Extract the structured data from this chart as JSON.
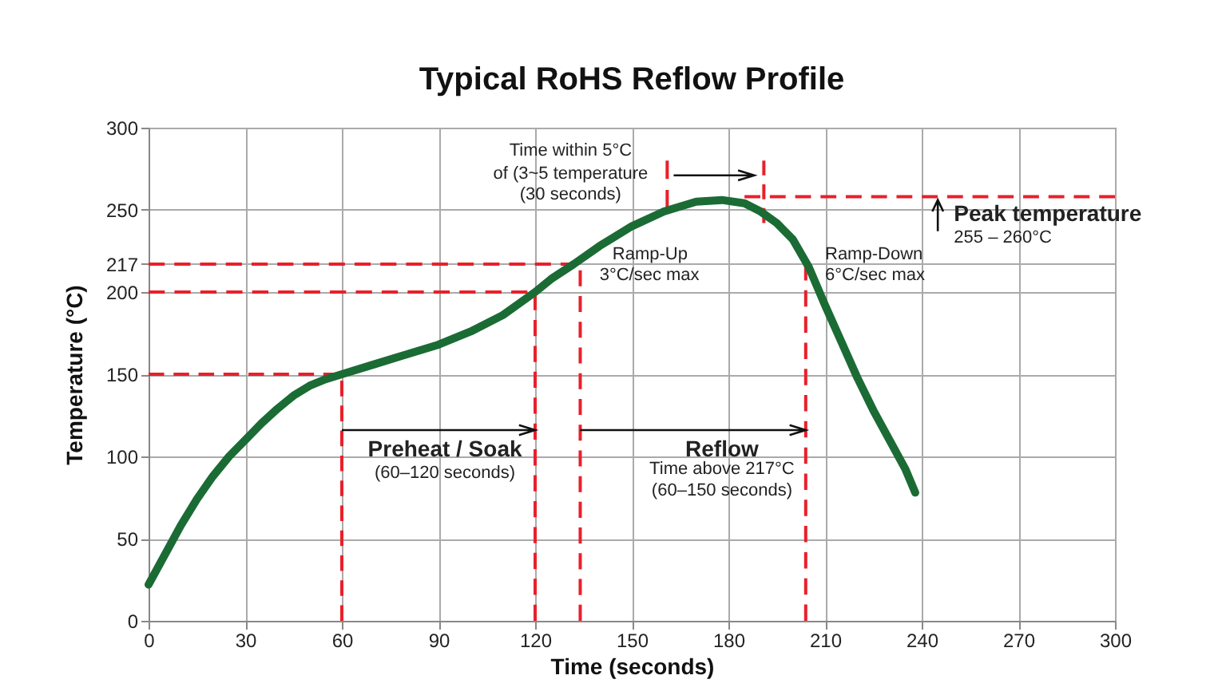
{
  "chart_data": {
    "type": "line",
    "title": "Typical RoHS Reflow Profile",
    "xlabel": "Time (seconds)",
    "ylabel": "Temperature (°C)",
    "xlim": [
      0,
      300
    ],
    "xticks": [
      0,
      30,
      60,
      90,
      120,
      150,
      180,
      210,
      240,
      270,
      300
    ],
    "ylim": [
      0,
      300
    ],
    "yticks": [
      0,
      50,
      100,
      150,
      200,
      217,
      250,
      300
    ],
    "grid": true,
    "series": [
      {
        "color": "#1b6b35",
        "x": [
          0,
          5,
          10,
          15,
          20,
          25,
          30,
          35,
          40,
          45,
          50,
          55,
          60,
          70,
          80,
          90,
          100,
          110,
          120,
          125,
          132,
          140,
          150,
          160,
          170,
          178,
          185,
          190,
          195,
          200,
          205,
          210,
          215,
          220,
          225,
          230,
          235,
          238
        ],
        "values": [
          22,
          40,
          58,
          74,
          88,
          100,
          110,
          120,
          129,
          137,
          143,
          147,
          150,
          156,
          162,
          168,
          176,
          186,
          200,
          208,
          217,
          228,
          240,
          249,
          255,
          256,
          254,
          249,
          242,
          232,
          215,
          192,
          170,
          148,
          128,
          110,
          92,
          78
        ]
      },
      {
        "type": "line",
        "line_style": "dashed",
        "color": "#e8202a",
        "x": [
          0,
          60,
          60
        ],
        "values": [
          150,
          150,
          0
        ]
      },
      {
        "type": "line",
        "line_style": "dashed",
        "color": "#e8202a",
        "x": [
          0,
          120,
          120
        ],
        "values": [
          200,
          200,
          0
        ]
      },
      {
        "type": "line",
        "line_style": "dashed",
        "color": "#e8202a",
        "x": [
          0,
          134,
          134
        ],
        "values": [
          217,
          217,
          0
        ]
      },
      {
        "type": "line",
        "line_style": "dashed",
        "color": "#e8202a",
        "x": [
          204,
          204
        ],
        "values": [
          0,
          217
        ]
      },
      {
        "type": "line",
        "line_style": "dashed",
        "color": "#e8202a",
        "x": [
          185,
          300
        ],
        "values": [
          258,
          258
        ]
      },
      {
        "type": "line",
        "line_style": "dashed",
        "color": "#e8202a",
        "x": [
          161,
          161
        ],
        "values": [
          251,
          280
        ]
      },
      {
        "type": "line",
        "line_style": "dashed",
        "color": "#e8202a",
        "x": [
          191,
          191
        ],
        "values": [
          242,
          280
        ]
      }
    ],
    "annotations": [
      "Time within 5°C",
      "of (3~5 temperature",
      "(30 seconds)",
      "Ramp-Up",
      "3°C/sec max",
      "Ramp-Down",
      "6°C/sec max",
      "Peak temperature",
      "255 – 260°C",
      "Preheat / Soak",
      "(60–120 seconds)",
      "Reflow",
      "Time above 217°C",
      "(60–150 seconds)"
    ]
  }
}
